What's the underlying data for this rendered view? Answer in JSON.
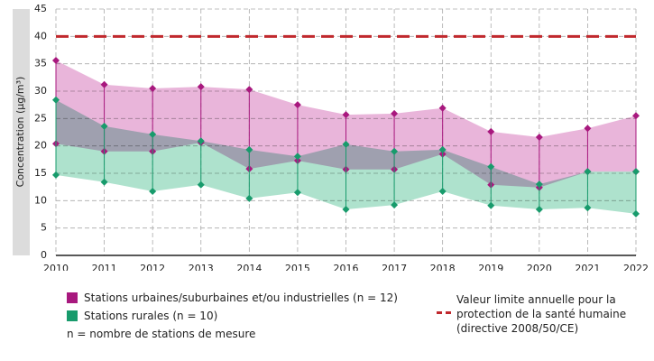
{
  "chart_data": {
    "type": "range",
    "y_label": "Concentration (µg/m³)",
    "categories": [
      "2010",
      "2011",
      "2012",
      "2013",
      "2014",
      "2015",
      "2016",
      "2017",
      "2018",
      "2019",
      "2020",
      "2021",
      "2022"
    ],
    "ylim": [
      0,
      45
    ],
    "yticks": [
      0,
      5,
      10,
      15,
      20,
      25,
      30,
      35,
      40,
      45
    ],
    "grid": true,
    "series": [
      {
        "name": "Stations urbaines/suburbaines et/ou industrielles (n = 12)",
        "color": "#a8187e",
        "fill": "#e9b5da",
        "high": [
          35.6,
          31.2,
          30.5,
          30.8,
          30.3,
          27.5,
          25.7,
          25.9,
          26.9,
          22.6,
          21.6,
          23.2,
          25.5
        ],
        "low": [
          20.4,
          19.0,
          19.0,
          20.6,
          15.8,
          17.3,
          15.7,
          15.7,
          18.5,
          12.9,
          12.4,
          15.3,
          15.3
        ]
      },
      {
        "name": "Stations rurales (n = 10)",
        "color": "#189b6c",
        "fill": "#aee2cd",
        "high": [
          28.4,
          23.6,
          22.1,
          20.9,
          19.3,
          18.1,
          20.3,
          19.0,
          19.3,
          16.2,
          13.0,
          15.3,
          15.3
        ],
        "low": [
          14.7,
          13.4,
          11.7,
          12.9,
          10.4,
          11.5,
          8.4,
          9.2,
          11.7,
          9.1,
          8.4,
          8.7,
          7.6
        ]
      }
    ],
    "reference_line": {
      "value": 40,
      "color": "#c0282d",
      "label": "Valeur limite annuelle pour la protection de la santé humaine (directive 2008/50/CE)"
    },
    "note": "n = nombre de stations de mesure"
  }
}
